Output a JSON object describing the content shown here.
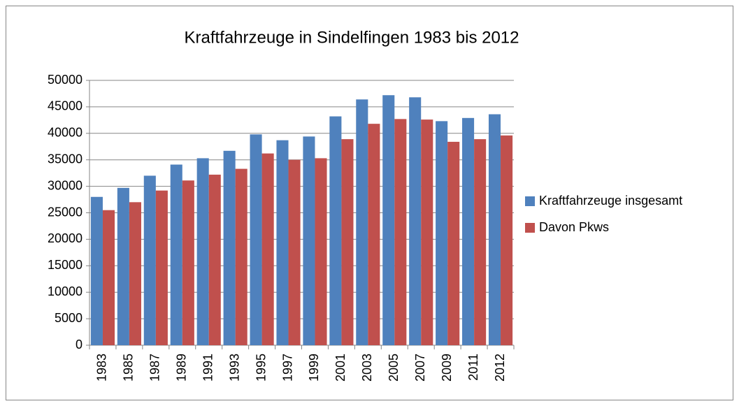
{
  "chart_data": {
    "type": "bar",
    "title": "Kraftfahrzeuge in Sindelfingen 1983 bis 2012",
    "categories": [
      "1983",
      "1985",
      "1987",
      "1989",
      "1991",
      "1993",
      "1995",
      "1997",
      "1999",
      "2001",
      "2003",
      "2005",
      "2007",
      "2009",
      "2011",
      "2012"
    ],
    "series": [
      {
        "name": "Kraftfahrzeuge insgesamt",
        "color": "#4f81bd",
        "values": [
          28000,
          29700,
          32000,
          34100,
          35300,
          36700,
          39800,
          38700,
          39400,
          43200,
          46400,
          47200,
          46800,
          42300,
          42900,
          43600
        ]
      },
      {
        "name": "Davon Pkws",
        "color": "#c0504d",
        "values": [
          25500,
          27000,
          29200,
          31100,
          32200,
          33300,
          36200,
          35000,
          35300,
          38900,
          41800,
          42700,
          42600,
          38400,
          38900,
          39600
        ]
      }
    ],
    "ylim": [
      0,
      50000
    ],
    "yticks": [
      0,
      5000,
      10000,
      15000,
      20000,
      25000,
      30000,
      35000,
      40000,
      45000,
      50000
    ],
    "grid": true,
    "legend": "right"
  }
}
